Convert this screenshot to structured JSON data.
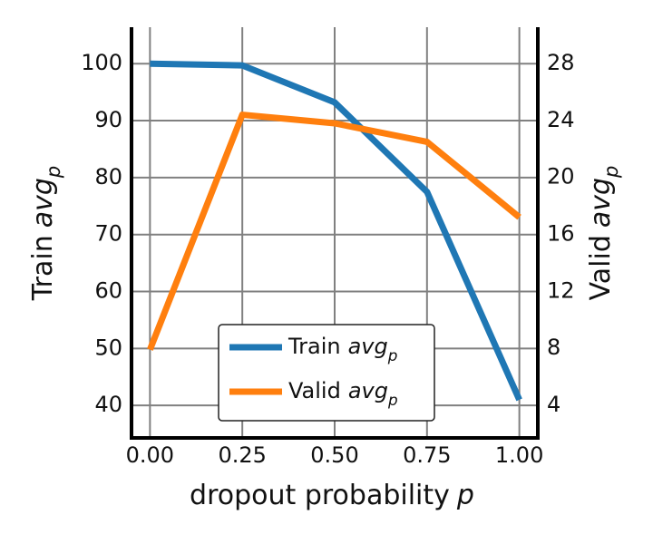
{
  "chart_data": {
    "type": "line",
    "xlabel": {
      "text": "dropout probability",
      "symbol": "p"
    },
    "ylabel": {
      "text": "Train",
      "symbol": "avg",
      "subscript": "p"
    },
    "y2label": {
      "text": "Valid",
      "symbol": "avg",
      "subscript": "p"
    },
    "x": [
      0,
      0.25,
      0.5,
      0.75,
      1.0
    ],
    "series": [
      {
        "name": {
          "text": "Train",
          "symbol": "avg",
          "subscript": "p"
        },
        "color": "#1f77b4",
        "values": [
          100,
          99.7,
          93.2,
          77.5,
          41
        ],
        "axis": "y"
      },
      {
        "name": {
          "text": "Valid",
          "symbol": "avg",
          "subscript": "p"
        },
        "color": "#ff7f0e",
        "values": [
          7.9,
          24.4,
          23.8,
          22.5,
          17.2
        ],
        "axis": "y2"
      }
    ],
    "xlim": [
      -0.05,
      1.05
    ],
    "xticks": [
      {
        "value": 0,
        "label": "0.00"
      },
      {
        "value": 0.25,
        "label": "0.25"
      },
      {
        "value": 0.5,
        "label": "0.50"
      },
      {
        "value": 0.75,
        "label": "0.75"
      },
      {
        "value": 1.0,
        "label": "1.00"
      }
    ],
    "ylim": [
      34.3,
      106.4
    ],
    "yticks": [
      40,
      50,
      60,
      70,
      80,
      90,
      100
    ],
    "y2lim": [
      1.7,
      30.55
    ],
    "y2ticks": [
      4,
      8,
      12,
      16,
      20,
      24,
      28
    ],
    "grid": true,
    "legend": "lower center"
  }
}
